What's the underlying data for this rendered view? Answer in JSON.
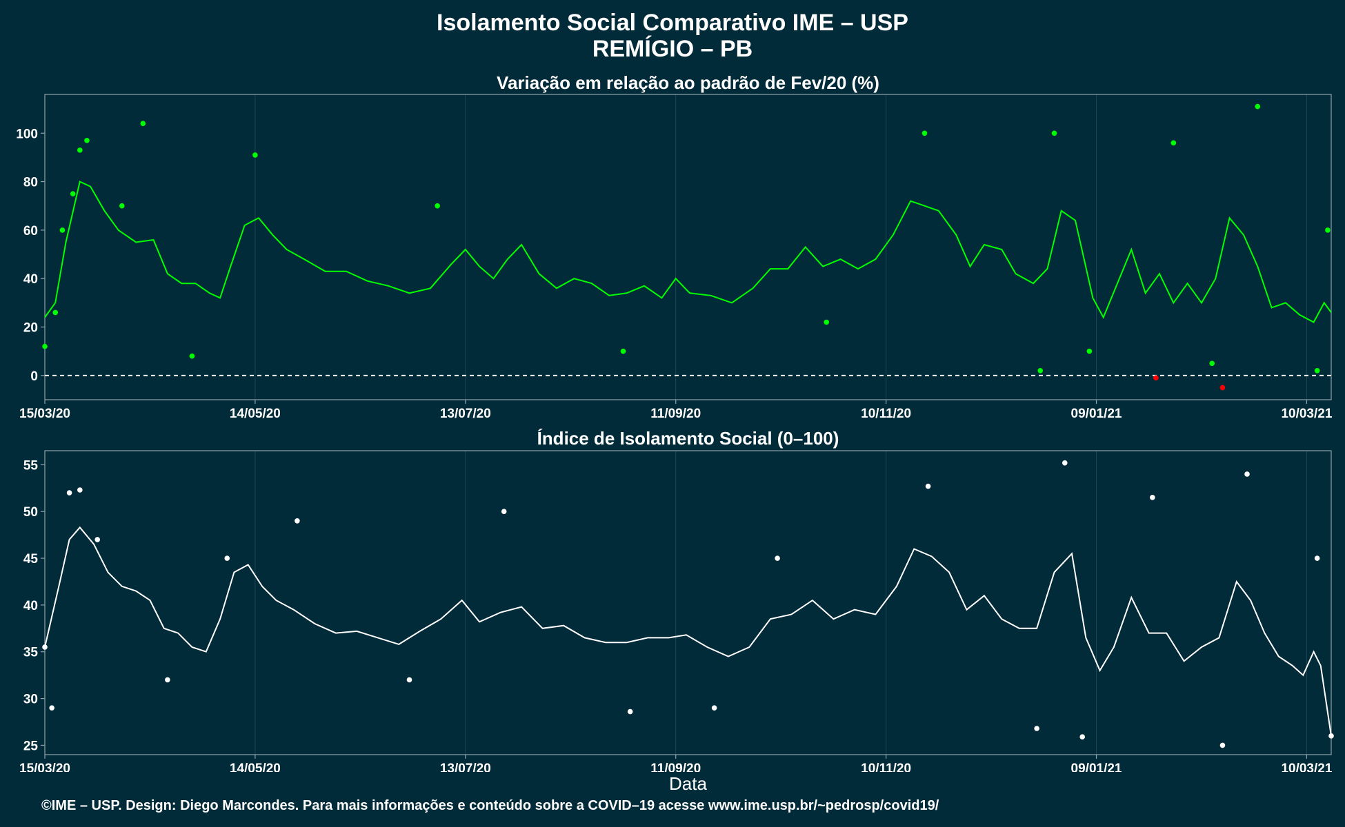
{
  "title": "Isolamento Social Comparativo IME – USP",
  "subtitle": "REMÍGIO – PB",
  "xlabel": "Data",
  "caption": "©IME – USP. Design: Diego Marcondes. Para mais informações e conteúdo sobre a COVID–19 acesse www.ime.usp.br/~pedrosp/covid19/",
  "colors": {
    "background": "#022b3a",
    "top_series": "#00ff00",
    "negative_points": "#ff0000",
    "bottom_series": "#ffffff",
    "grid": "#1e4554",
    "axis": "#8fa3ab"
  },
  "chart_data": [
    {
      "type": "scatter",
      "title": "Variação em relação ao padrão de Fev/20 (%)",
      "x_start": "15/03/20",
      "x_end": "17/03/21",
      "xticks": [
        "15/03/20",
        "14/05/20",
        "13/07/20",
        "11/09/20",
        "10/11/20",
        "09/01/21",
        "10/03/21"
      ],
      "ylim": [
        -10,
        116
      ],
      "yticks": [
        0,
        20,
        40,
        60,
        80,
        100
      ],
      "reference_line": 0,
      "grid": "vertical",
      "legend": "none",
      "points_sample": [
        {
          "x": "15/03/20",
          "y": 12
        },
        {
          "x": "18/03/20",
          "y": 26
        },
        {
          "x": "20/03/20",
          "y": 60
        },
        {
          "x": "23/03/20",
          "y": 75
        },
        {
          "x": "25/03/20",
          "y": 93
        },
        {
          "x": "27/03/20",
          "y": 97
        },
        {
          "x": "06/04/20",
          "y": 70
        },
        {
          "x": "12/04/20",
          "y": 104
        },
        {
          "x": "26/04/20",
          "y": 8
        },
        {
          "x": "14/05/20",
          "y": 91
        },
        {
          "x": "05/07/20",
          "y": 70
        },
        {
          "x": "27/08/20",
          "y": 10
        },
        {
          "x": "24/10/20",
          "y": 22
        },
        {
          "x": "21/11/20",
          "y": 100
        },
        {
          "x": "24/12/20",
          "y": 2
        },
        {
          "x": "28/12/20",
          "y": 100
        },
        {
          "x": "07/01/21",
          "y": 10
        },
        {
          "x": "31/01/21",
          "y": 96
        },
        {
          "x": "11/02/21",
          "y": 5
        },
        {
          "x": "24/02/21",
          "y": 111
        },
        {
          "x": "13/03/21",
          "y": 2
        },
        {
          "x": "16/03/21",
          "y": 60
        }
      ],
      "negative_points": [
        {
          "x": "26/01/21",
          "y": -1
        },
        {
          "x": "14/02/21",
          "y": -5
        }
      ],
      "moving_average": [
        {
          "x": "15/03/20",
          "y": 24
        },
        {
          "x": "18/03/20",
          "y": 30
        },
        {
          "x": "21/03/20",
          "y": 55
        },
        {
          "x": "25/03/20",
          "y": 80
        },
        {
          "x": "28/03/20",
          "y": 78
        },
        {
          "x": "01/04/20",
          "y": 68
        },
        {
          "x": "05/04/20",
          "y": 60
        },
        {
          "x": "10/04/20",
          "y": 55
        },
        {
          "x": "15/04/20",
          "y": 56
        },
        {
          "x": "19/04/20",
          "y": 42
        },
        {
          "x": "23/04/20",
          "y": 38
        },
        {
          "x": "27/04/20",
          "y": 38
        },
        {
          "x": "01/05/20",
          "y": 34
        },
        {
          "x": "04/05/20",
          "y": 32
        },
        {
          "x": "07/05/20",
          "y": 45
        },
        {
          "x": "11/05/20",
          "y": 62
        },
        {
          "x": "15/05/20",
          "y": 65
        },
        {
          "x": "19/05/20",
          "y": 58
        },
        {
          "x": "23/05/20",
          "y": 52
        },
        {
          "x": "28/05/20",
          "y": 48
        },
        {
          "x": "03/06/20",
          "y": 43
        },
        {
          "x": "09/06/20",
          "y": 43
        },
        {
          "x": "15/06/20",
          "y": 39
        },
        {
          "x": "21/06/20",
          "y": 37
        },
        {
          "x": "27/06/20",
          "y": 34
        },
        {
          "x": "03/07/20",
          "y": 36
        },
        {
          "x": "09/07/20",
          "y": 46
        },
        {
          "x": "13/07/20",
          "y": 52
        },
        {
          "x": "17/07/20",
          "y": 45
        },
        {
          "x": "21/07/20",
          "y": 40
        },
        {
          "x": "25/07/20",
          "y": 48
        },
        {
          "x": "29/07/20",
          "y": 54
        },
        {
          "x": "03/08/20",
          "y": 42
        },
        {
          "x": "08/08/20",
          "y": 36
        },
        {
          "x": "13/08/20",
          "y": 40
        },
        {
          "x": "18/08/20",
          "y": 38
        },
        {
          "x": "23/08/20",
          "y": 33
        },
        {
          "x": "28/08/20",
          "y": 34
        },
        {
          "x": "02/09/20",
          "y": 37
        },
        {
          "x": "07/09/20",
          "y": 32
        },
        {
          "x": "11/09/20",
          "y": 40
        },
        {
          "x": "15/09/20",
          "y": 34
        },
        {
          "x": "21/09/20",
          "y": 33
        },
        {
          "x": "27/09/20",
          "y": 30
        },
        {
          "x": "03/10/20",
          "y": 36
        },
        {
          "x": "08/10/20",
          "y": 44
        },
        {
          "x": "13/10/20",
          "y": 44
        },
        {
          "x": "18/10/20",
          "y": 53
        },
        {
          "x": "23/10/20",
          "y": 45
        },
        {
          "x": "28/10/20",
          "y": 48
        },
        {
          "x": "02/11/20",
          "y": 44
        },
        {
          "x": "07/11/20",
          "y": 48
        },
        {
          "x": "12/11/20",
          "y": 58
        },
        {
          "x": "17/11/20",
          "y": 72
        },
        {
          "x": "21/11/20",
          "y": 70
        },
        {
          "x": "25/11/20",
          "y": 68
        },
        {
          "x": "30/11/20",
          "y": 58
        },
        {
          "x": "04/12/20",
          "y": 45
        },
        {
          "x": "08/12/20",
          "y": 54
        },
        {
          "x": "13/12/20",
          "y": 52
        },
        {
          "x": "17/12/20",
          "y": 42
        },
        {
          "x": "22/12/20",
          "y": 38
        },
        {
          "x": "26/12/20",
          "y": 44
        },
        {
          "x": "30/12/20",
          "y": 68
        },
        {
          "x": "03/01/21",
          "y": 64
        },
        {
          "x": "08/01/21",
          "y": 32
        },
        {
          "x": "11/01/21",
          "y": 24
        },
        {
          "x": "15/01/21",
          "y": 38
        },
        {
          "x": "19/01/21",
          "y": 52
        },
        {
          "x": "23/01/21",
          "y": 34
        },
        {
          "x": "27/01/21",
          "y": 42
        },
        {
          "x": "31/01/21",
          "y": 30
        },
        {
          "x": "04/02/21",
          "y": 38
        },
        {
          "x": "08/02/21",
          "y": 30
        },
        {
          "x": "12/02/21",
          "y": 40
        },
        {
          "x": "16/02/21",
          "y": 65
        },
        {
          "x": "20/02/21",
          "y": 58
        },
        {
          "x": "24/02/21",
          "y": 45
        },
        {
          "x": "28/02/21",
          "y": 28
        },
        {
          "x": "04/03/21",
          "y": 30
        },
        {
          "x": "08/03/21",
          "y": 25
        },
        {
          "x": "12/03/21",
          "y": 22
        },
        {
          "x": "15/03/21",
          "y": 30
        },
        {
          "x": "17/03/21",
          "y": 26
        }
      ]
    },
    {
      "type": "scatter",
      "title": "Índice de Isolamento Social (0–100)",
      "x_start": "15/03/20",
      "x_end": "17/03/21",
      "xticks": [
        "15/03/20",
        "14/05/20",
        "13/07/20",
        "11/09/20",
        "10/11/20",
        "09/01/21",
        "10/03/21"
      ],
      "ylim": [
        24,
        56.5
      ],
      "yticks": [
        25,
        30,
        35,
        40,
        45,
        50,
        55
      ],
      "grid": "vertical",
      "legend": "none",
      "points_sample": [
        {
          "x": "15/03/20",
          "y": 35.5
        },
        {
          "x": "17/03/20",
          "y": 29
        },
        {
          "x": "22/03/20",
          "y": 52
        },
        {
          "x": "25/03/20",
          "y": 52.3
        },
        {
          "x": "30/03/20",
          "y": 47
        },
        {
          "x": "19/04/20",
          "y": 32
        },
        {
          "x": "06/05/20",
          "y": 45
        },
        {
          "x": "26/05/20",
          "y": 49
        },
        {
          "x": "27/06/20",
          "y": 32
        },
        {
          "x": "24/07/20",
          "y": 50
        },
        {
          "x": "29/08/20",
          "y": 28.6
        },
        {
          "x": "22/09/20",
          "y": 29
        },
        {
          "x": "10/10/20",
          "y": 45
        },
        {
          "x": "22/11/20",
          "y": 52.7
        },
        {
          "x": "23/12/20",
          "y": 26.8
        },
        {
          "x": "31/12/20",
          "y": 55.2
        },
        {
          "x": "05/01/21",
          "y": 25.9
        },
        {
          "x": "14/02/21",
          "y": 25
        },
        {
          "x": "25/01/21",
          "y": 51.5
        },
        {
          "x": "21/02/21",
          "y": 54
        },
        {
          "x": "13/03/21",
          "y": 45
        },
        {
          "x": "17/03/21",
          "y": 26
        }
      ],
      "moving_average": [
        {
          "x": "15/03/20",
          "y": 35.5
        },
        {
          "x": "19/03/20",
          "y": 42
        },
        {
          "x": "22/03/20",
          "y": 47
        },
        {
          "x": "25/03/20",
          "y": 48.3
        },
        {
          "x": "29/03/20",
          "y": 46.5
        },
        {
          "x": "02/04/20",
          "y": 43.5
        },
        {
          "x": "06/04/20",
          "y": 42
        },
        {
          "x": "10/04/20",
          "y": 41.5
        },
        {
          "x": "14/04/20",
          "y": 40.5
        },
        {
          "x": "18/04/20",
          "y": 37.5
        },
        {
          "x": "22/04/20",
          "y": 37
        },
        {
          "x": "26/04/20",
          "y": 35.5
        },
        {
          "x": "30/04/20",
          "y": 35
        },
        {
          "x": "04/05/20",
          "y": 38.5
        },
        {
          "x": "08/05/20",
          "y": 43.5
        },
        {
          "x": "12/05/20",
          "y": 44.3
        },
        {
          "x": "16/05/20",
          "y": 42
        },
        {
          "x": "20/05/20",
          "y": 40.5
        },
        {
          "x": "25/05/20",
          "y": 39.5
        },
        {
          "x": "31/05/20",
          "y": 38
        },
        {
          "x": "06/06/20",
          "y": 37
        },
        {
          "x": "12/06/20",
          "y": 37.2
        },
        {
          "x": "18/06/20",
          "y": 36.5
        },
        {
          "x": "24/06/20",
          "y": 35.8
        },
        {
          "x": "30/06/20",
          "y": 37.2
        },
        {
          "x": "06/07/20",
          "y": 38.5
        },
        {
          "x": "12/07/20",
          "y": 40.5
        },
        {
          "x": "17/07/20",
          "y": 38.2
        },
        {
          "x": "23/07/20",
          "y": 39.2
        },
        {
          "x": "29/07/20",
          "y": 39.8
        },
        {
          "x": "04/08/20",
          "y": 37.5
        },
        {
          "x": "10/08/20",
          "y": 37.8
        },
        {
          "x": "16/08/20",
          "y": 36.5
        },
        {
          "x": "22/08/20",
          "y": 36
        },
        {
          "x": "28/08/20",
          "y": 36
        },
        {
          "x": "03/09/20",
          "y": 36.5
        },
        {
          "x": "09/09/20",
          "y": 36.5
        },
        {
          "x": "14/09/20",
          "y": 36.8
        },
        {
          "x": "20/09/20",
          "y": 35.5
        },
        {
          "x": "26/09/20",
          "y": 34.5
        },
        {
          "x": "02/10/20",
          "y": 35.5
        },
        {
          "x": "08/10/20",
          "y": 38.5
        },
        {
          "x": "14/10/20",
          "y": 39
        },
        {
          "x": "20/10/20",
          "y": 40.5
        },
        {
          "x": "26/10/20",
          "y": 38.5
        },
        {
          "x": "01/11/20",
          "y": 39.5
        },
        {
          "x": "07/11/20",
          "y": 39
        },
        {
          "x": "13/11/20",
          "y": 42
        },
        {
          "x": "18/11/20",
          "y": 46
        },
        {
          "x": "23/11/20",
          "y": 45.2
        },
        {
          "x": "28/11/20",
          "y": 43.5
        },
        {
          "x": "03/12/20",
          "y": 39.5
        },
        {
          "x": "08/12/20",
          "y": 41
        },
        {
          "x": "13/12/20",
          "y": 38.5
        },
        {
          "x": "18/12/20",
          "y": 37.5
        },
        {
          "x": "23/12/20",
          "y": 37.5
        },
        {
          "x": "28/12/20",
          "y": 43.5
        },
        {
          "x": "02/01/21",
          "y": 45.5
        },
        {
          "x": "06/01/21",
          "y": 36.5
        },
        {
          "x": "10/01/21",
          "y": 33
        },
        {
          "x": "14/01/21",
          "y": 35.5
        },
        {
          "x": "19/01/21",
          "y": 40.8
        },
        {
          "x": "24/01/21",
          "y": 37
        },
        {
          "x": "29/01/21",
          "y": 37
        },
        {
          "x": "03/02/21",
          "y": 34
        },
        {
          "x": "08/02/21",
          "y": 35.5
        },
        {
          "x": "13/02/21",
          "y": 36.5
        },
        {
          "x": "18/02/21",
          "y": 42.5
        },
        {
          "x": "22/02/21",
          "y": 40.5
        },
        {
          "x": "26/02/21",
          "y": 37
        },
        {
          "x": "02/03/21",
          "y": 34.5
        },
        {
          "x": "06/03/21",
          "y": 33.5
        },
        {
          "x": "09/03/21",
          "y": 32.5
        },
        {
          "x": "12/03/21",
          "y": 35
        },
        {
          "x": "14/03/21",
          "y": 33.5
        },
        {
          "x": "17/03/21",
          "y": 26
        }
      ]
    }
  ]
}
